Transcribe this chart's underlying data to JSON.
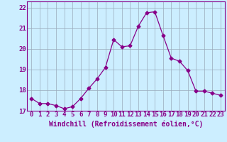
{
  "x": [
    0,
    1,
    2,
    3,
    4,
    5,
    6,
    7,
    8,
    9,
    10,
    11,
    12,
    13,
    14,
    15,
    16,
    17,
    18,
    19,
    20,
    21,
    22,
    23
  ],
  "y": [
    17.6,
    17.35,
    17.35,
    17.25,
    17.1,
    17.2,
    17.6,
    18.1,
    18.55,
    19.1,
    20.45,
    20.1,
    20.15,
    21.1,
    21.75,
    21.8,
    20.65,
    19.55,
    19.4,
    18.95,
    17.95,
    17.95,
    17.85,
    17.75
  ],
  "line_color": "#880088",
  "marker": "D",
  "marker_size": 2.5,
  "bg_color": "#cceeff",
  "grid_color": "#99aabb",
  "xlabel": "Windchill (Refroidissement éolien,°C)",
  "xlim": [
    -0.5,
    23.5
  ],
  "ylim": [
    17.0,
    22.3
  ],
  "yticks": [
    17,
    18,
    19,
    20,
    21,
    22
  ],
  "xticks": [
    0,
    1,
    2,
    3,
    4,
    5,
    6,
    7,
    8,
    9,
    10,
    11,
    12,
    13,
    14,
    15,
    16,
    17,
    18,
    19,
    20,
    21,
    22,
    23
  ],
  "tick_label_fontsize": 6.5,
  "xlabel_fontsize": 7,
  "figsize": [
    3.2,
    2.0
  ],
  "dpi": 100
}
